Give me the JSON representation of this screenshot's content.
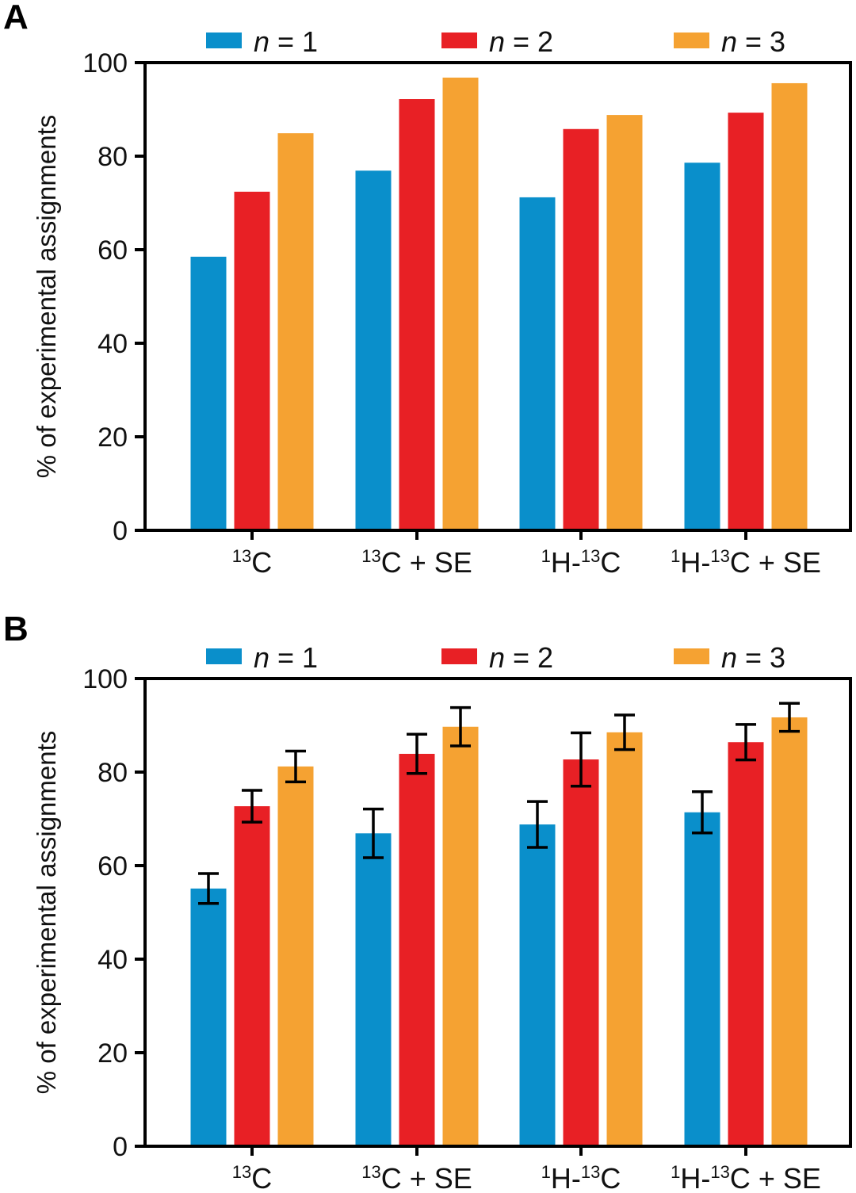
{
  "colors": {
    "n1": "#0A8FCB",
    "n2": "#E82025",
    "n3": "#F5A232",
    "axis": "#000000"
  },
  "chart_data": [
    {
      "panel": "A",
      "type": "bar",
      "title": "",
      "xlabel": "",
      "ylabel": "% of experimental assignments",
      "ylim": [
        0,
        100
      ],
      "yticks": [
        0,
        20,
        40,
        60,
        80,
        100
      ],
      "grid": false,
      "legend_position": "top",
      "categories": [
        {
          "sup1": "",
          "base1": "",
          "sup2": "13",
          "rest": "C"
        },
        {
          "sup1": "",
          "base1": "",
          "sup2": "13",
          "rest": "C + SE"
        },
        {
          "sup1": "1",
          "base1": "H-",
          "sup2": "13",
          "rest": "C"
        },
        {
          "sup1": "1",
          "base1": "H-",
          "sup2": "13",
          "rest": "C + SE"
        }
      ],
      "category_text": [
        "13C",
        "13C + SE",
        "1H-13C",
        "1H-13C + SE"
      ],
      "series": [
        {
          "name": "n = 1",
          "italic": "n",
          "rest": " = 1",
          "color_key": "n1",
          "values": [
            58.5,
            76.9,
            71.2,
            78.6
          ]
        },
        {
          "name": "n = 2",
          "italic": "n",
          "rest": " = 2",
          "color_key": "n2",
          "values": [
            72.4,
            92.2,
            85.8,
            89.3
          ]
        },
        {
          "name": "n = 3",
          "italic": "n",
          "rest": " = 3",
          "color_key": "n3",
          "values": [
            84.9,
            96.8,
            88.8,
            95.6
          ]
        }
      ]
    },
    {
      "panel": "B",
      "type": "bar",
      "title": "",
      "xlabel": "",
      "ylabel": "% of experimental assignments",
      "ylim": [
        0,
        100
      ],
      "yticks": [
        0,
        20,
        40,
        60,
        80,
        100
      ],
      "grid": false,
      "legend_position": "top",
      "categories": [
        {
          "sup1": "",
          "base1": "",
          "sup2": "13",
          "rest": "C"
        },
        {
          "sup1": "",
          "base1": "",
          "sup2": "13",
          "rest": "C + SE"
        },
        {
          "sup1": "1",
          "base1": "H-",
          "sup2": "13",
          "rest": "C"
        },
        {
          "sup1": "1",
          "base1": "H-",
          "sup2": "13",
          "rest": "C + SE"
        }
      ],
      "category_text": [
        "13C",
        "13C + SE",
        "1H-13C",
        "1H-13C + SE"
      ],
      "series": [
        {
          "name": "n = 1",
          "italic": "n",
          "rest": " = 1",
          "color_key": "n1",
          "values": [
            55.1,
            66.9,
            68.8,
            71.4
          ],
          "errors": [
            3.2,
            5.2,
            4.9,
            4.4
          ]
        },
        {
          "name": "n = 2",
          "italic": "n",
          "rest": " = 2",
          "color_key": "n2",
          "values": [
            72.7,
            83.9,
            82.7,
            86.4
          ],
          "errors": [
            3.4,
            4.2,
            5.7,
            3.8
          ]
        },
        {
          "name": "n = 3",
          "italic": "n",
          "rest": " = 3",
          "color_key": "n3",
          "values": [
            81.2,
            89.7,
            88.5,
            91.7
          ],
          "errors": [
            3.3,
            4.1,
            3.7,
            3.0
          ]
        }
      ]
    }
  ]
}
